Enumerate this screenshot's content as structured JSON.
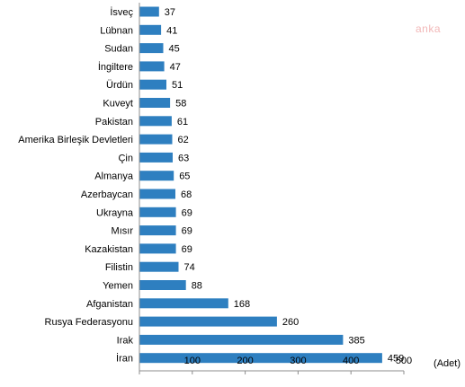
{
  "watermark": "anka",
  "chart_data": {
    "type": "bar",
    "orientation": "horizontal",
    "categories": [
      "İsveç",
      "Lübnan",
      "Sudan",
      "İngiltere",
      "Ürdün",
      "Kuveyt",
      "Pakistan",
      "Amerika Birleşik Devletleri",
      "Çin",
      "Almanya",
      "Azerbaycan",
      "Ukrayna",
      "Mısır",
      "Kazakistan",
      "Filistin",
      "Yemen",
      "Afganistan",
      "Rusya Federasyonu",
      "Irak",
      "İran"
    ],
    "values": [
      37,
      41,
      45,
      47,
      51,
      58,
      61,
      62,
      63,
      65,
      68,
      69,
      69,
      69,
      74,
      88,
      168,
      260,
      385,
      459
    ],
    "xlim": [
      0,
      500
    ],
    "xticks": [
      0,
      100,
      200,
      300,
      400,
      500
    ],
    "xlabel": "(Adet)",
    "bar_color": "#2e7fc0",
    "grid": false
  }
}
